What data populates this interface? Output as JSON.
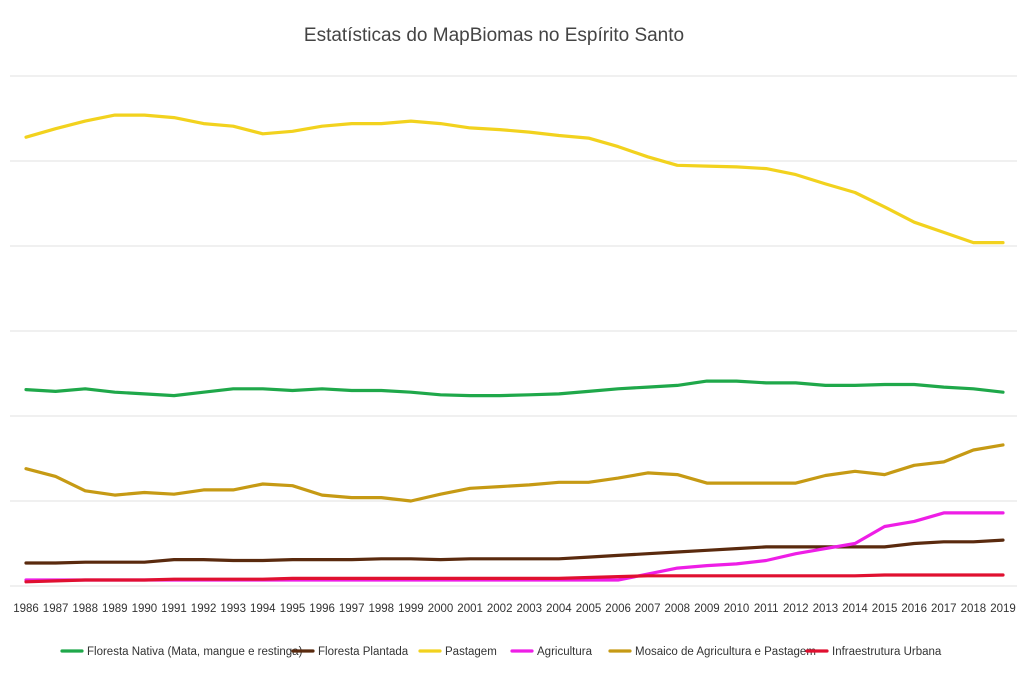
{
  "chart_data": {
    "type": "line",
    "title": "Estatísticas do MapBiomas no Espírito Santo",
    "xlabel": "",
    "ylabel": "",
    "y_tick_labels_shown": false,
    "grid": true,
    "legend_position": "bottom",
    "ylim": [
      0,
      600
    ],
    "x": [
      "1986",
      "1987",
      "1988",
      "1989",
      "1990",
      "1991",
      "1992",
      "1993",
      "1994",
      "1995",
      "1996",
      "1997",
      "1998",
      "1999",
      "2000",
      "2001",
      "2002",
      "2003",
      "2004",
      "2005",
      "2006",
      "2007",
      "2008",
      "2009",
      "2010",
      "2011",
      "2012",
      "2013",
      "2014",
      "2015",
      "2016",
      "2017",
      "2018",
      "2019"
    ],
    "series": [
      {
        "name": "Floresta Nativa (Mata, mangue e restinga)",
        "color": "#1fa84a",
        "values": [
          231,
          229,
          232,
          228,
          226,
          224,
          228,
          232,
          232,
          230,
          232,
          230,
          230,
          228,
          225,
          224,
          224,
          225,
          226,
          229,
          232,
          234,
          236,
          241,
          241,
          239,
          239,
          236,
          236,
          237,
          237,
          234,
          232,
          228
        ]
      },
      {
        "name": "Floresta Plantada",
        "color": "#5a2a0e",
        "values": [
          27,
          27,
          28,
          28,
          28,
          31,
          31,
          30,
          30,
          31,
          31,
          31,
          32,
          32,
          31,
          32,
          32,
          32,
          32,
          34,
          36,
          38,
          40,
          42,
          44,
          46,
          46,
          46,
          46,
          46,
          50,
          52,
          52,
          54
        ]
      },
      {
        "name": "Pastagem",
        "color": "#f2d21e",
        "values": [
          528,
          538,
          547,
          554,
          554,
          551,
          544,
          541,
          532,
          535,
          541,
          544,
          544,
          547,
          544,
          539,
          537,
          534,
          530,
          527,
          517,
          505,
          495,
          494,
          493,
          491,
          484,
          473,
          463,
          446,
          428,
          416,
          404,
          404
        ]
      },
      {
        "name": "Agricultura",
        "color": "#ee1ee6",
        "values": [
          7,
          7,
          7,
          7,
          7,
          7,
          7,
          7,
          7,
          7,
          7,
          7,
          7,
          7,
          7,
          7,
          7,
          7,
          7,
          7,
          7,
          14,
          21,
          24,
          26,
          30,
          38,
          44,
          50,
          70,
          76,
          86,
          86,
          86
        ]
      },
      {
        "name": "Mosaico de Agricultura e Pastagem",
        "color": "#c69a14",
        "values": [
          138,
          129,
          112,
          107,
          110,
          108,
          113,
          113,
          120,
          118,
          107,
          104,
          104,
          100,
          108,
          115,
          117,
          119,
          122,
          122,
          127,
          133,
          131,
          121,
          121,
          121,
          121,
          130,
          135,
          131,
          142,
          146,
          160,
          166
        ]
      },
      {
        "name": "Infraestrutura Urbana",
        "color": "#e01030",
        "values": [
          5,
          6,
          7,
          7,
          7,
          8,
          8,
          8,
          8,
          9,
          9,
          9,
          9,
          9,
          9,
          9,
          9,
          9,
          9,
          10,
          11,
          12,
          12,
          12,
          12,
          12,
          12,
          12,
          12,
          13,
          13,
          13,
          13,
          13
        ]
      }
    ]
  }
}
